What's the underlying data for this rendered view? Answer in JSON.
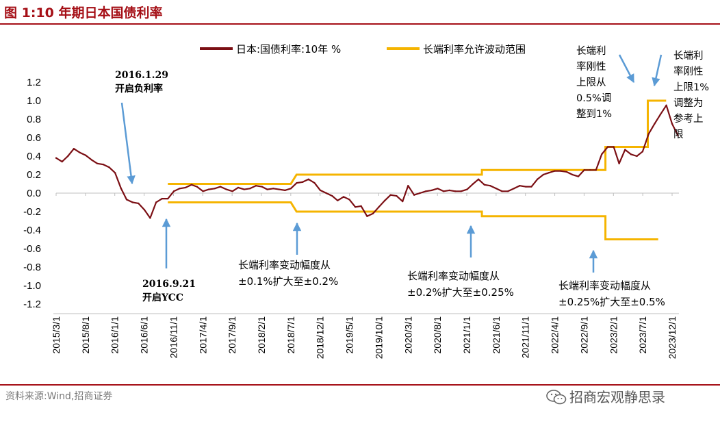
{
  "figure": {
    "title": "图 1:10 年期日本国债利率",
    "source": "资料来源:Wind,招商证券",
    "watermark": "招商宏观静思录",
    "watermark_icon": "wechat-icon"
  },
  "chart_data": {
    "type": "line",
    "title": "",
    "xlabel": "",
    "ylabel": "",
    "ylim": [
      -1.2,
      1.2
    ],
    "yticks": [
      -1.2,
      -1.0,
      -0.8,
      -0.6,
      -0.4,
      -0.2,
      0.0,
      0.2,
      0.4,
      0.6,
      0.8,
      1.0,
      1.2
    ],
    "xticks": [
      "2015/3/1",
      "2015/8/1",
      "2016/1/1",
      "2016/6/1",
      "2016/11/1",
      "2017/4/1",
      "2017/9/1",
      "2018/2/1",
      "2018/7/1",
      "2018/12/1",
      "2019/5/1",
      "2019/10/1",
      "2020/3/1",
      "2020/8/1",
      "2021/1/1",
      "2021/6/1",
      "2021/11/1",
      "2022/4/1",
      "2022/9/1",
      "2023/2/1",
      "2023/7/1",
      "2023/12/1"
    ],
    "grid": false,
    "legend_position": "top",
    "colors": {
      "yield": "#7b0f14",
      "band": "#f5b400",
      "arrow": "#5b9bd5"
    },
    "series": [
      {
        "name": "日本:国债利率:10年 %",
        "color": "#7b0f14",
        "points": [
          [
            "2015/3/1",
            0.38
          ],
          [
            "2015/4/1",
            0.34
          ],
          [
            "2015/5/1",
            0.4
          ],
          [
            "2015/6/1",
            0.48
          ],
          [
            "2015/7/1",
            0.44
          ],
          [
            "2015/8/1",
            0.41
          ],
          [
            "2015/9/1",
            0.36
          ],
          [
            "2015/10/1",
            0.32
          ],
          [
            "2015/11/1",
            0.31
          ],
          [
            "2015/12/1",
            0.28
          ],
          [
            "2016/1/1",
            0.22
          ],
          [
            "2016/2/1",
            0.05
          ],
          [
            "2016/3/1",
            -0.07
          ],
          [
            "2016/4/1",
            -0.1
          ],
          [
            "2016/5/1",
            -0.11
          ],
          [
            "2016/6/1",
            -0.18
          ],
          [
            "2016/7/1",
            -0.27
          ],
          [
            "2016/8/1",
            -0.1
          ],
          [
            "2016/9/1",
            -0.06
          ],
          [
            "2016/10/1",
            -0.06
          ],
          [
            "2016/11/1",
            0.02
          ],
          [
            "2016/12/1",
            0.05
          ],
          [
            "2017/1/1",
            0.06
          ],
          [
            "2017/2/1",
            0.09
          ],
          [
            "2017/3/1",
            0.07
          ],
          [
            "2017/4/1",
            0.02
          ],
          [
            "2017/5/1",
            0.04
          ],
          [
            "2017/6/1",
            0.05
          ],
          [
            "2017/7/1",
            0.07
          ],
          [
            "2017/8/1",
            0.04
          ],
          [
            "2017/9/1",
            0.02
          ],
          [
            "2017/10/1",
            0.06
          ],
          [
            "2017/11/1",
            0.04
          ],
          [
            "2017/12/1",
            0.05
          ],
          [
            "2018/1/1",
            0.08
          ],
          [
            "2018/2/1",
            0.07
          ],
          [
            "2018/3/1",
            0.04
          ],
          [
            "2018/4/1",
            0.05
          ],
          [
            "2018/5/1",
            0.04
          ],
          [
            "2018/6/1",
            0.03
          ],
          [
            "2018/7/1",
            0.05
          ],
          [
            "2018/8/1",
            0.11
          ],
          [
            "2018/9/1",
            0.12
          ],
          [
            "2018/10/1",
            0.15
          ],
          [
            "2018/11/1",
            0.11
          ],
          [
            "2018/12/1",
            0.03
          ],
          [
            "2019/1/1",
            0.0
          ],
          [
            "2019/2/1",
            -0.03
          ],
          [
            "2019/3/1",
            -0.08
          ],
          [
            "2019/4/1",
            -0.04
          ],
          [
            "2019/5/1",
            -0.07
          ],
          [
            "2019/6/1",
            -0.15
          ],
          [
            "2019/7/1",
            -0.14
          ],
          [
            "2019/8/1",
            -0.25
          ],
          [
            "2019/9/1",
            -0.22
          ],
          [
            "2019/10/1",
            -0.15
          ],
          [
            "2019/11/1",
            -0.08
          ],
          [
            "2019/12/1",
            -0.02
          ],
          [
            "2020/1/1",
            -0.03
          ],
          [
            "2020/2/1",
            -0.09
          ],
          [
            "2020/3/1",
            0.08
          ],
          [
            "2020/4/1",
            -0.02
          ],
          [
            "2020/5/1",
            0.0
          ],
          [
            "2020/6/1",
            0.02
          ],
          [
            "2020/7/1",
            0.03
          ],
          [
            "2020/8/1",
            0.05
          ],
          [
            "2020/9/1",
            0.02
          ],
          [
            "2020/10/1",
            0.03
          ],
          [
            "2020/11/1",
            0.02
          ],
          [
            "2020/12/1",
            0.02
          ],
          [
            "2021/1/1",
            0.04
          ],
          [
            "2021/2/1",
            0.1
          ],
          [
            "2021/3/1",
            0.15
          ],
          [
            "2021/4/1",
            0.09
          ],
          [
            "2021/5/1",
            0.08
          ],
          [
            "2021/6/1",
            0.05
          ],
          [
            "2021/7/1",
            0.02
          ],
          [
            "2021/8/1",
            0.02
          ],
          [
            "2021/9/1",
            0.05
          ],
          [
            "2021/10/1",
            0.08
          ],
          [
            "2021/11/1",
            0.07
          ],
          [
            "2021/12/1",
            0.07
          ],
          [
            "2022/1/1",
            0.15
          ],
          [
            "2022/2/1",
            0.2
          ],
          [
            "2022/3/1",
            0.22
          ],
          [
            "2022/4/1",
            0.24
          ],
          [
            "2022/5/1",
            0.24
          ],
          [
            "2022/6/1",
            0.23
          ],
          [
            "2022/7/1",
            0.2
          ],
          [
            "2022/8/1",
            0.18
          ],
          [
            "2022/9/1",
            0.25
          ],
          [
            "2022/10/1",
            0.25
          ],
          [
            "2022/11/1",
            0.25
          ],
          [
            "2022/12/1",
            0.42
          ],
          [
            "2023/1/1",
            0.5
          ],
          [
            "2023/2/1",
            0.5
          ],
          [
            "2023/3/1",
            0.32
          ],
          [
            "2023/4/1",
            0.47
          ],
          [
            "2023/5/1",
            0.42
          ],
          [
            "2023/6/1",
            0.4
          ],
          [
            "2023/7/1",
            0.45
          ],
          [
            "2023/8/1",
            0.64
          ],
          [
            "2023/9/1",
            0.75
          ],
          [
            "2023/10/1",
            0.85
          ],
          [
            "2023/11/1",
            0.95
          ],
          [
            "2023/12/1",
            0.75
          ],
          [
            "2024/1/1",
            0.62
          ]
        ]
      },
      {
        "name": "长端利率允许波动范围",
        "color": "#f5b400",
        "upper": [
          [
            "2016/10/1",
            0.1
          ],
          [
            "2018/7/1",
            0.1
          ],
          [
            "2018/7/31",
            0.2
          ],
          [
            "2021/3/19",
            0.2
          ],
          [
            "2021/3/19",
            0.25
          ],
          [
            "2022/12/20",
            0.25
          ],
          [
            "2022/12/20",
            0.5
          ],
          [
            "2023/7/28",
            0.5
          ],
          [
            "2023/7/28",
            1.0
          ],
          [
            "2023/10/31",
            1.0
          ]
        ],
        "lower": [
          [
            "2016/10/1",
            -0.1
          ],
          [
            "2018/7/1",
            -0.1
          ],
          [
            "2018/7/31",
            -0.2
          ],
          [
            "2021/3/19",
            -0.2
          ],
          [
            "2021/3/19",
            -0.25
          ],
          [
            "2022/12/20",
            -0.25
          ],
          [
            "2022/12/20",
            -0.5
          ],
          [
            "2023/9/20",
            -0.5
          ]
        ]
      }
    ],
    "annotations": [
      {
        "lines": [
          "2016.1.29",
          "开启负利率"
        ],
        "bold": true
      },
      {
        "lines": [
          "2016.9.21",
          "开启YCC"
        ],
        "bold": true
      },
      {
        "lines": [
          "长端利率变动幅度从",
          "±0.1%扩大至±0.2%"
        ],
        "bold": false
      },
      {
        "lines": [
          "长端利率变动幅度从",
          "±0.2%扩大至±0.25%"
        ],
        "bold": false
      },
      {
        "lines": [
          "长端利率变动幅度从",
          "±0.25%扩大至±0.5%"
        ],
        "bold": false
      },
      {
        "lines": [
          "长端利",
          "率刚性",
          "上限从",
          "0.5%调",
          "整到1%"
        ],
        "bold": false
      },
      {
        "lines": [
          "长端利",
          "率刚性",
          "上限1%",
          "调整为",
          "参考上",
          "限"
        ],
        "bold": false
      }
    ]
  }
}
